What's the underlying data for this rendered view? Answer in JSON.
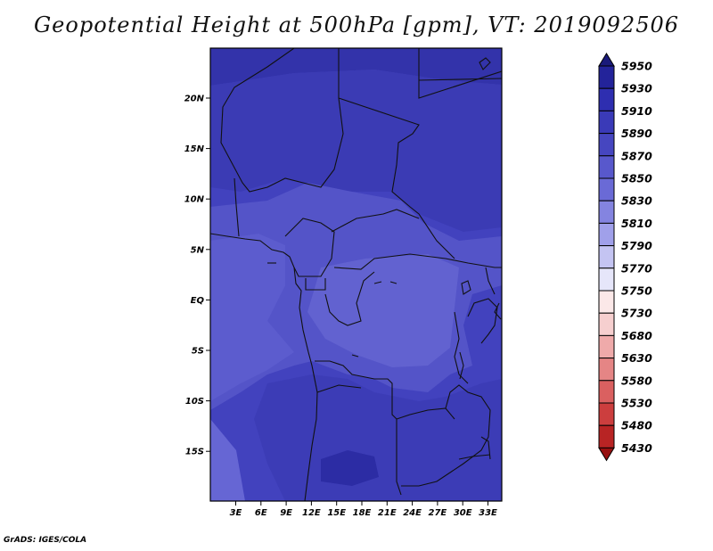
{
  "title": "Geopotential Height at 500hPa [gpm], VT: 2019092506",
  "credit": "GrADS: IGES/COLA",
  "map": {
    "lon_range": [
      0,
      35
    ],
    "lat_range": [
      -20,
      25
    ],
    "lat_ticks": [
      "20N",
      "15N",
      "10N",
      "5N",
      "EQ",
      "5S",
      "10S",
      "15S"
    ],
    "lon_ticks": [
      "3E",
      "6E",
      "9E",
      "12E",
      "15E",
      "18E",
      "21E",
      "24E",
      "27E",
      "30E",
      "33E"
    ]
  },
  "colorbar": {
    "levels": [
      "5950",
      "5930",
      "5910",
      "5890",
      "5870",
      "5850",
      "5830",
      "5810",
      "5790",
      "5770",
      "5750",
      "5730",
      "5680",
      "5630",
      "5580",
      "5530",
      "5480",
      "5430"
    ],
    "colors": [
      "#1a1a7a",
      "#23239a",
      "#2e2eb0",
      "#3a3ab8",
      "#4646c0",
      "#5858cc",
      "#6a6ad6",
      "#8484e0",
      "#a0a0ea",
      "#c4c4f2",
      "#e6e6fa",
      "#fbe8e8",
      "#f6cfcf",
      "#efaaaa",
      "#e58585",
      "#da6060",
      "#cc3e3e",
      "#b82424",
      "#961010"
    ]
  }
}
